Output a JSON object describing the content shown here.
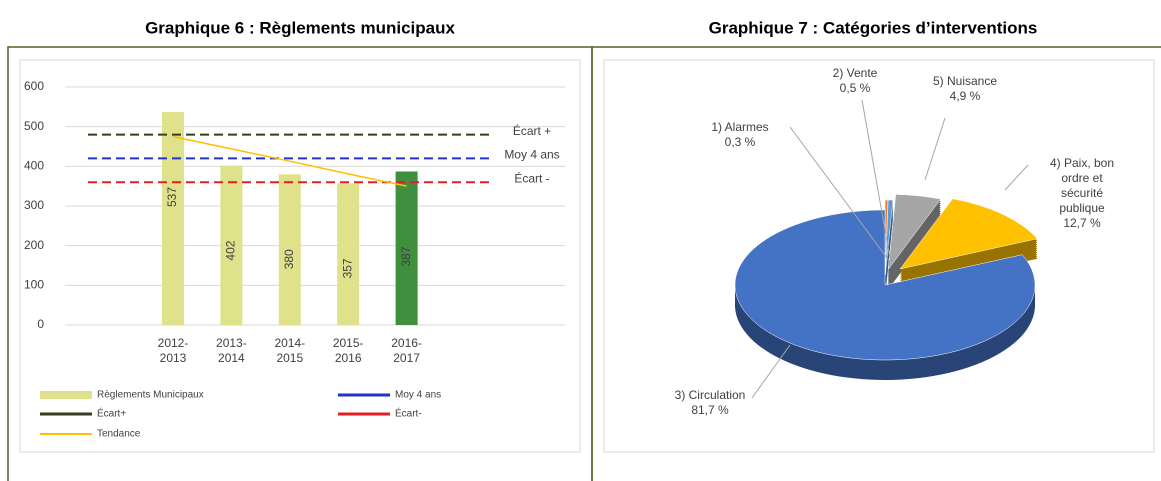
{
  "chart_data": [
    {
      "type": "bar",
      "title": "Graphique 6 : Règlements municipaux",
      "categories": [
        "2012-2013",
        "2013-2014",
        "2014-2015",
        "2015-2016",
        "2016-2017"
      ],
      "series": [
        {
          "name": "Règlements Municipaux",
          "type": "bar",
          "colors": [
            "#dfe28a",
            "#dfe28a",
            "#dfe28a",
            "#dfe28a",
            "#3f8f3f"
          ],
          "color": "#dfe28a",
          "values": [
            537,
            402,
            380,
            357,
            387
          ]
        },
        {
          "name": "Moy 4 ans",
          "type": "hline",
          "color": "#2233cc",
          "value": 420
        },
        {
          "name": "Écart+",
          "type": "hline",
          "color": "#3b3b1f",
          "value": 480
        },
        {
          "name": "Écart-",
          "type": "hline",
          "color": "#e02020",
          "value": 360
        },
        {
          "name": "Tendance",
          "type": "line",
          "color": "#ffc000",
          "values": [
            475,
            444,
            413,
            381,
            350
          ]
        }
      ],
      "annotations": [
        "Écart +",
        "Moy 4 ans",
        "Écart -"
      ],
      "ylim": [
        0,
        600
      ],
      "yticks": [
        0,
        100,
        200,
        300,
        400,
        500,
        600
      ],
      "grid": true
    },
    {
      "type": "pie",
      "title": "Graphique 7 : Catégories d’interventions",
      "categories": [
        "1) Alarmes",
        "2) Vente",
        "5) Nuisance",
        "4) Paix, bon ordre et sécurité publique",
        "3) Circulation"
      ],
      "values": [
        0.3,
        0.5,
        4.9,
        12.7,
        81.7
      ],
      "value_labels": [
        "0,3 %",
        "0,5 %",
        "4,9 %",
        "12,7 %",
        "81,7 %"
      ],
      "colors": [
        "#ed7d31",
        "#5b9bd5",
        "#a6a6a6",
        "#ffc000",
        "#4472c4"
      ]
    }
  ]
}
